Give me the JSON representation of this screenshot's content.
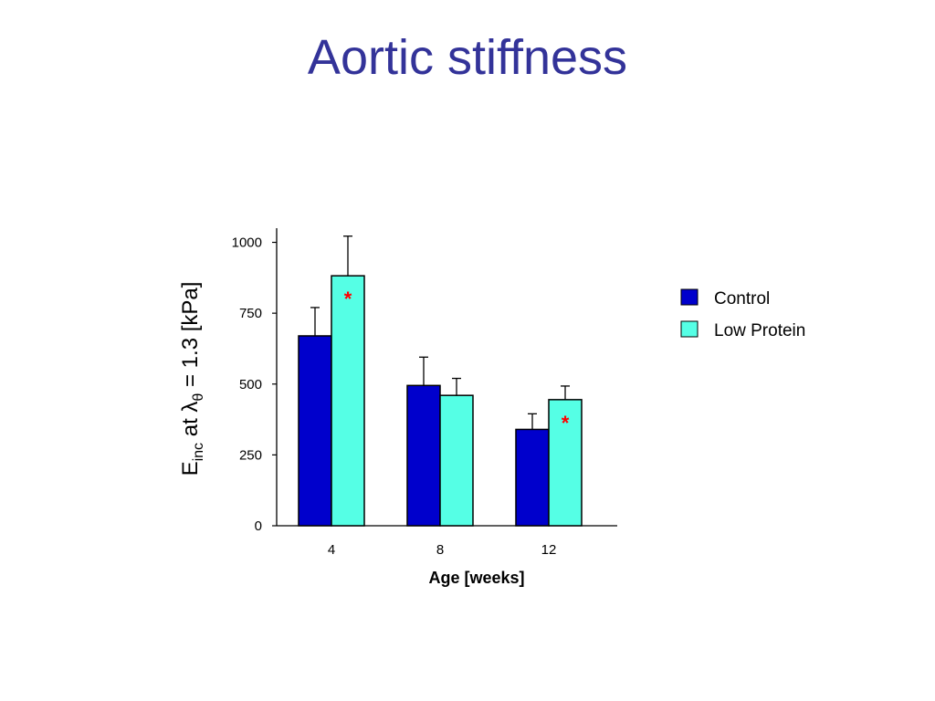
{
  "slide": {
    "title": "Aortic stiffness"
  },
  "chart_data": {
    "type": "bar",
    "categories": [
      "4",
      "8",
      "12"
    ],
    "xlabel": "Age [weeks]",
    "ylabel": {
      "main": "E",
      "main_sub": "inc",
      "mid": " at λ",
      "mid_sub": "θ",
      "tail": " = 1.3 [kPa]"
    },
    "ylim": [
      0,
      1050
    ],
    "yticks": [
      0,
      250,
      500,
      750,
      1000
    ],
    "grid": false,
    "legend_position": "right",
    "series": [
      {
        "name": "Control",
        "values": [
          670,
          495,
          340
        ],
        "errors": [
          100,
          100,
          55
        ],
        "color": "#0000cc"
      },
      {
        "name": "Low Protein",
        "values": [
          882,
          460,
          445
        ],
        "errors": [
          140,
          60,
          48
        ],
        "color": "#55ffe5"
      }
    ],
    "annotations": [
      {
        "text": "*",
        "category": "4",
        "series": "Low Protein"
      },
      {
        "text": "*",
        "category": "12",
        "series": "Low Protein"
      }
    ]
  }
}
